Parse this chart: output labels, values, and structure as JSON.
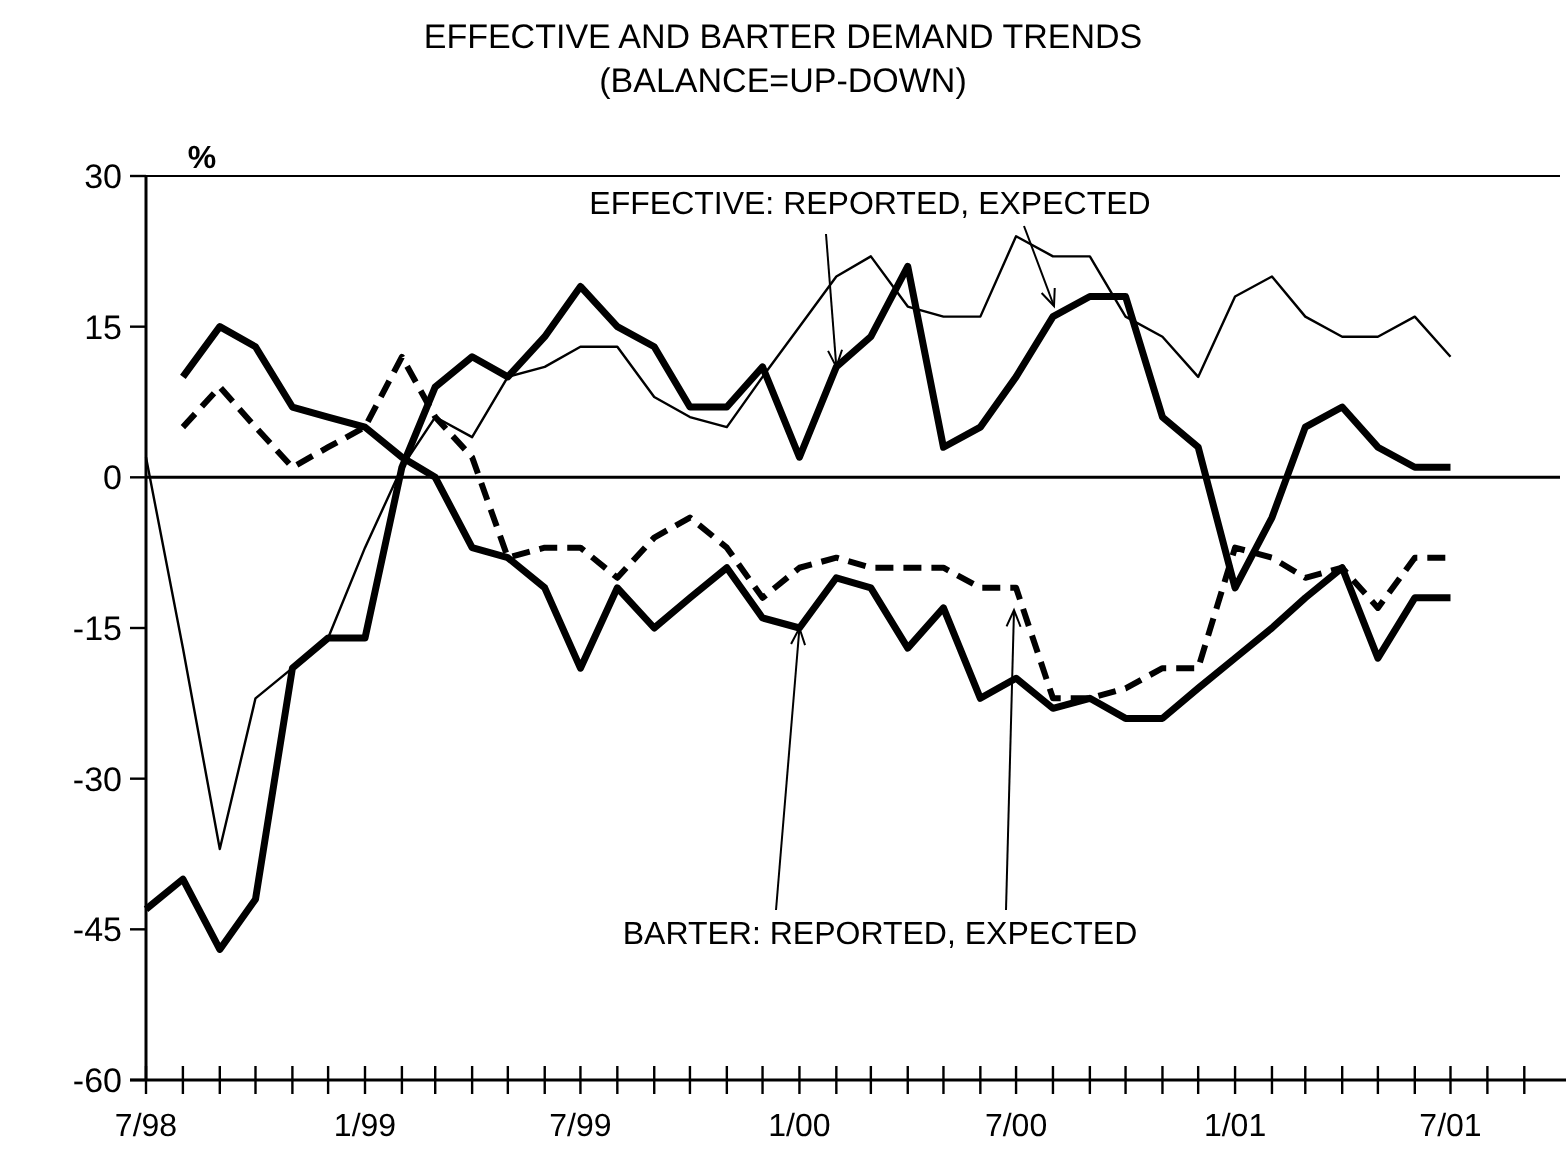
{
  "chart_data": {
    "type": "line",
    "title": "EFFECTIVE AND BARTER DEMAND TRENDS",
    "subtitle": "(BALANCE=UP-DOWN)",
    "ylabel": "%",
    "x": [
      "1998-07",
      "1998-08",
      "1998-09",
      "1998-10",
      "1998-11",
      "1998-12",
      "1999-01",
      "1999-02",
      "1999-03",
      "1999-04",
      "1999-05",
      "1999-06",
      "1999-07",
      "1999-08",
      "1999-09",
      "1999-10",
      "1999-11",
      "1999-12",
      "2000-01",
      "2000-02",
      "2000-03",
      "2000-04",
      "2000-05",
      "2000-06",
      "2000-07",
      "2000-08",
      "2000-09",
      "2000-10",
      "2000-11",
      "2000-12",
      "2001-01",
      "2001-02",
      "2001-03",
      "2001-04",
      "2001-05",
      "2001-06",
      "2001-07"
    ],
    "series": [
      {
        "color": "#000000",
        "line_style": "solid",
        "values": [
          2,
          -17,
          -37,
          -22,
          -19,
          -16,
          -7,
          1,
          6,
          4,
          10,
          11,
          13,
          13,
          8,
          6,
          5,
          10,
          15,
          20,
          22,
          17,
          16,
          16,
          24,
          22,
          22,
          16,
          14,
          10,
          18,
          20,
          16,
          14,
          14,
          16,
          12
        ]
      },
      {
        "color": "#000000",
        "line_style": "solid",
        "values": [
          -43,
          -40,
          -47,
          -42,
          -19,
          -16,
          -16,
          1,
          9,
          12,
          10,
          14,
          19,
          15,
          13,
          7,
          7,
          11,
          2,
          11,
          14,
          21,
          3,
          5,
          10,
          16,
          18,
          18,
          6,
          3,
          -11,
          -4,
          5,
          7,
          3,
          1,
          1
        ]
      },
      {
        "color": "#000000",
        "line_style": "solid",
        "values": [
          null,
          10,
          15,
          13,
          7,
          6,
          5,
          2,
          0,
          -7,
          -8,
          -11,
          -19,
          -11,
          -15,
          -12,
          -9,
          -14,
          -15,
          -10,
          -11,
          -17,
          -13,
          -22,
          -20,
          -23,
          -22,
          -24,
          -24,
          -21,
          -18,
          -15,
          -12,
          -9,
          -18,
          -12,
          -12
        ]
      },
      {
        "color": "#000000",
        "line_style": "dashed",
        "values": [
          null,
          5,
          9,
          5,
          1,
          3,
          5,
          12,
          6,
          2,
          -8,
          -7,
          -7,
          -10,
          -6,
          -4,
          -7,
          -12,
          -9,
          -8,
          -9,
          -9,
          -9,
          -11,
          -11,
          -22,
          -22,
          -21,
          -19,
          -19,
          -7,
          -8,
          -10,
          -9,
          -13,
          -8,
          -8
        ]
      }
    ],
    "xlim": [
      "1998-07",
      "2001-10"
    ],
    "xticks": [
      {
        "value": "1998-07",
        "label": "7/98"
      },
      {
        "value": "1998-08",
        "label": null
      },
      {
        "value": "1998-09",
        "label": null
      },
      {
        "value": "1998-10",
        "label": null
      },
      {
        "value": "1998-11",
        "label": null
      },
      {
        "value": "1998-12",
        "label": null
      },
      {
        "value": "1999-01",
        "label": "1/99"
      },
      {
        "value": "1999-02",
        "label": null
      },
      {
        "value": "1999-03",
        "label": null
      },
      {
        "value": "1999-04",
        "label": null
      },
      {
        "value": "1999-05",
        "label": null
      },
      {
        "value": "1999-06",
        "label": null
      },
      {
        "value": "1999-07",
        "label": "7/99"
      },
      {
        "value": "1999-08",
        "label": null
      },
      {
        "value": "1999-09",
        "label": null
      },
      {
        "value": "1999-10",
        "label": null
      },
      {
        "value": "1999-11",
        "label": null
      },
      {
        "value": "1999-12",
        "label": null
      },
      {
        "value": "2000-01",
        "label": "1/00"
      },
      {
        "value": "2000-02",
        "label": null
      },
      {
        "value": "2000-03",
        "label": null
      },
      {
        "value": "2000-04",
        "label": null
      },
      {
        "value": "2000-05",
        "label": null
      },
      {
        "value": "2000-06",
        "label": null
      },
      {
        "value": "2000-07",
        "label": "7/00"
      },
      {
        "value": "2000-08",
        "label": null
      },
      {
        "value": "2000-09",
        "label": null
      },
      {
        "value": "2000-10",
        "label": null
      },
      {
        "value": "2000-11",
        "label": null
      },
      {
        "value": "2000-12",
        "label": null
      },
      {
        "value": "2001-01",
        "label": "1/01"
      },
      {
        "value": "2001-02",
        "label": null
      },
      {
        "value": "2001-03",
        "label": null
      },
      {
        "value": "2001-04",
        "label": null
      },
      {
        "value": "2001-05",
        "label": null
      },
      {
        "value": "2001-06",
        "label": null
      },
      {
        "value": "2001-07",
        "label": "7/01"
      },
      {
        "value": "2001-08",
        "label": null
      },
      {
        "value": "2001-09",
        "label": null
      }
    ],
    "ylim": [
      -60,
      30
    ],
    "yticks": [
      -60,
      -45,
      -30,
      -15,
      0,
      15,
      30
    ],
    "ref_lines": [
      {
        "axis": "y",
        "value": 0,
        "color": "#000000"
      }
    ],
    "annotations": [
      {
        "text": "EFFECTIVE: REPORTED, EXPECTED",
        "x": "2000-02",
        "y": 11
      },
      {
        "text": "BARTER: REPORTED, EXPECTED",
        "x": "2000-01",
        "y": -15
      }
    ],
    "grid": false,
    "marker": "none"
  }
}
